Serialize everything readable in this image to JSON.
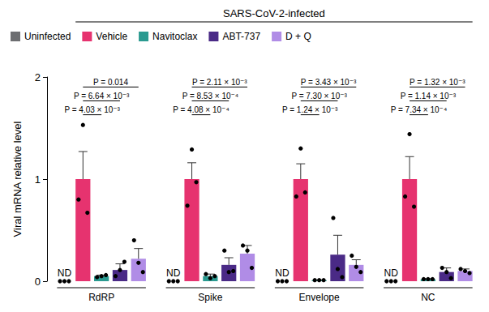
{
  "chart_data": {
    "type": "bar",
    "group_label": "SARS-CoV-2-infected",
    "y_label": "Viral mRNA relative level",
    "categories": [
      "RdRP",
      "Spike",
      "Envelope",
      "NC"
    ],
    "ylim": [
      0,
      2
    ],
    "yticks": [
      0,
      1,
      2
    ],
    "grid": false,
    "legend": "top-left",
    "series": [
      {
        "name": "Uninfected",
        "color": "#6d6e71",
        "values": [
          0,
          0,
          0,
          0
        ],
        "value_labels": [
          "ND",
          "ND",
          "ND",
          "ND"
        ],
        "errors": [
          null,
          null,
          null,
          null
        ],
        "points": [
          [
            0,
            0,
            0
          ],
          [
            0,
            0,
            0
          ],
          [
            0,
            0,
            0
          ],
          [
            0,
            0,
            0
          ]
        ]
      },
      {
        "name": "Vehicle",
        "color": "#e6336f",
        "values": [
          1.0,
          1.0,
          1.0,
          1.0
        ],
        "errors": [
          0.27,
          0.16,
          0.15,
          0.22
        ],
        "points": [
          [
            0.8,
            1.53,
            0.67
          ],
          [
            0.74,
            1.29,
            0.97
          ],
          [
            0.83,
            1.3,
            0.87
          ],
          [
            0.83,
            1.44,
            0.73
          ]
        ]
      },
      {
        "name": "Navitoclax",
        "color": "#2a9a90",
        "values": [
          0.05,
          0.05,
          0.01,
          0.02
        ],
        "errors": [
          0.01,
          0.02,
          0.003,
          0.005
        ],
        "points": [
          [
            0.04,
            0.05,
            0.06
          ],
          [
            0.07,
            0.03,
            0.05
          ],
          [
            0.01,
            0.01,
            0.01
          ],
          [
            0.02,
            0.02,
            0.02
          ]
        ]
      },
      {
        "name": "ABT-737",
        "color": "#4a2a86",
        "values": [
          0.11,
          0.16,
          0.26,
          0.09
        ],
        "errors": [
          0.06,
          0.07,
          0.19,
          0.04
        ],
        "points": [
          [
            0.05,
            0.11,
            0.19
          ],
          [
            0.3,
            0.09,
            0.1
          ],
          [
            0.62,
            0.12,
            0.04
          ],
          [
            0.13,
            0.09,
            0.03
          ]
        ]
      },
      {
        "name": "D + Q",
        "color": "#b08ce6",
        "values": [
          0.22,
          0.27,
          0.16,
          0.1
        ],
        "errors": [
          0.1,
          0.08,
          0.05,
          0.02
        ],
        "points": [
          [
            0.4,
            0.18,
            0.09
          ],
          [
            0.35,
            0.3,
            0.13
          ],
          [
            0.25,
            0.14,
            0.09
          ],
          [
            0.12,
            0.1,
            0.08
          ]
        ]
      }
    ],
    "comparisons": [
      {
        "category": "RdRP",
        "from": "Vehicle",
        "to": "Navitoclax",
        "label": "P = 4.03 × 10⁻³"
      },
      {
        "category": "RdRP",
        "from": "Vehicle",
        "to": "ABT-737",
        "label": "P = 6.64 × 10⁻³"
      },
      {
        "category": "RdRP",
        "from": "Vehicle",
        "to": "D + Q",
        "label": "P = 0.014"
      },
      {
        "category": "Spike",
        "from": "Vehicle",
        "to": "Navitoclax",
        "label": "P = 4.08 × 10⁻⁴"
      },
      {
        "category": "Spike",
        "from": "Vehicle",
        "to": "ABT-737",
        "label": "P = 8.53 × 10⁻⁴"
      },
      {
        "category": "Spike",
        "from": "Vehicle",
        "to": "D + Q",
        "label": "P = 2.11 × 10⁻³"
      },
      {
        "category": "Envelope",
        "from": "Vehicle",
        "to": "Navitoclax",
        "label": "P = 1.24 × 10⁻³"
      },
      {
        "category": "Envelope",
        "from": "Vehicle",
        "to": "ABT-737",
        "label": "P = 7.30 × 10⁻³"
      },
      {
        "category": "Envelope",
        "from": "Vehicle",
        "to": "D + Q",
        "label": "P = 3.43 × 10⁻³"
      },
      {
        "category": "NC",
        "from": "Vehicle",
        "to": "Navitoclax",
        "label": "P = 7.34 × 10⁻⁴"
      },
      {
        "category": "NC",
        "from": "Vehicle",
        "to": "ABT-737",
        "label": "P = 1.14 × 10⁻³"
      },
      {
        "category": "NC",
        "from": "Vehicle",
        "to": "D + Q",
        "label": "P = 1.32 × 10⁻³"
      }
    ]
  }
}
